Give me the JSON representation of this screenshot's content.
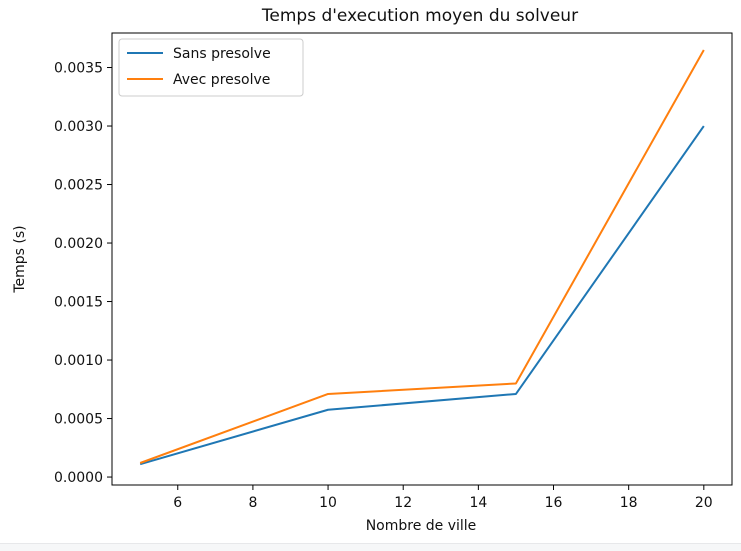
{
  "chart_data": {
    "type": "line",
    "title": "Temps d'execution moyen du solveur",
    "xlabel": "Nombre de ville",
    "ylabel": "Temps (s)",
    "x": [
      5,
      10,
      15,
      20
    ],
    "xlim": [
      4.25,
      20.75
    ],
    "ylim": [
      -6.8e-05,
      0.003795
    ],
    "xticks": [
      6,
      8,
      10,
      12,
      14,
      16,
      18,
      20
    ],
    "xtick_labels": [
      "6",
      "8",
      "10",
      "12",
      "14",
      "16",
      "18",
      "20"
    ],
    "yticks": [
      0,
      0.0005,
      0.001,
      0.0015,
      0.002,
      0.0025,
      0.003,
      0.0035
    ],
    "ytick_labels": [
      "0.0000",
      "0.0005",
      "0.0010",
      "0.0015",
      "0.0020",
      "0.0025",
      "0.0030",
      "0.0035"
    ],
    "grid": false,
    "legend_position": "upper-left",
    "series": [
      {
        "name": "Sans presolve",
        "color": "#1f77b4",
        "values": [
          0.00011,
          0.000575,
          0.00071,
          0.003
        ]
      },
      {
        "name": "Avec presolve",
        "color": "#ff7f0e",
        "values": [
          0.00012,
          0.00071,
          0.0008,
          0.00365
        ]
      }
    ]
  }
}
